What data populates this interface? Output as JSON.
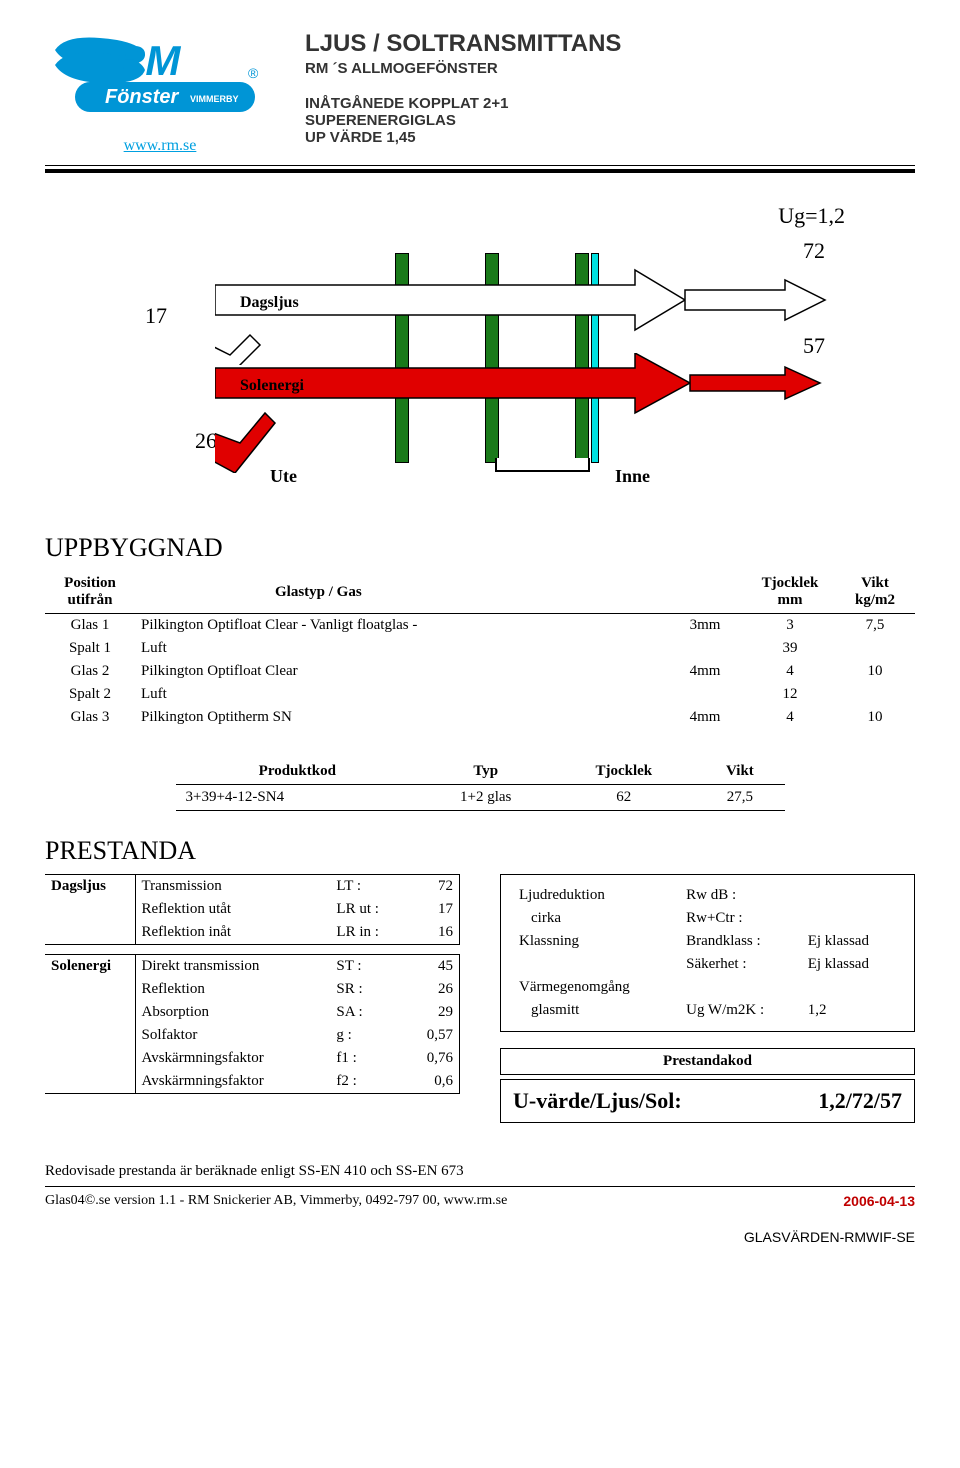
{
  "header": {
    "website": "www.rm.se",
    "title": "LJUS / SOLTRANSMITTANS",
    "subtitle1": "RM ´S ALLMOGEFÖNSTER",
    "subtitle2": "INÅTGÅNEDE KOPPLAT 2+1",
    "subtitle3": "SUPERENERGIGLAS",
    "subtitle4": "UP VÄRDE 1,45",
    "logo_colors": {
      "blue": "#0095d6",
      "dark_blue": "#003a6b"
    }
  },
  "diagram": {
    "ug_label": "Ug=1,2",
    "val_72": "72",
    "val_17": "17",
    "val_57": "57",
    "val_26": "26",
    "dagsljus_label": "Dagsljus",
    "solenergi_label": "Solenergi",
    "ute_label": "Ute",
    "inne_label": "Inne",
    "glass_positions": [
      350,
      440,
      530,
      546
    ],
    "glass_colors": [
      "#1a7a1a",
      "#1a7a1a",
      "#1a7a1a",
      "#00e0e0"
    ],
    "arrow_red": "#e00000",
    "arrow_white": "#ffffff"
  },
  "uppbyggnad": {
    "heading": "UPPBYGGNAD",
    "headers": {
      "position": "Position utifrån",
      "glastyp": "Glastyp / Gas",
      "tjocklek": "Tjocklek mm",
      "vikt": "Vikt kg/m2"
    },
    "rows": [
      {
        "pos": "Glas 1",
        "typ": "Pilkington Optifloat Clear    - Vanligt floatglas -",
        "dim": "3mm",
        "mm": "3",
        "kg": "7,5"
      },
      {
        "pos": "Spalt 1",
        "typ": "Luft",
        "dim": "",
        "mm": "39",
        "kg": ""
      },
      {
        "pos": "Glas 2",
        "typ": "Pilkington Optifloat Clear",
        "dim": "4mm",
        "mm": "4",
        "kg": "10"
      },
      {
        "pos": "Spalt 2",
        "typ": "Luft",
        "dim": "",
        "mm": "12",
        "kg": ""
      },
      {
        "pos": "Glas 3",
        "typ": "Pilkington Optitherm SN",
        "dim": "4mm",
        "mm": "4",
        "kg": "10"
      }
    ]
  },
  "produktkod": {
    "headers": {
      "kod": "Produktkod",
      "typ": "Typ",
      "tjocklek": "Tjocklek",
      "vikt": "Vikt"
    },
    "row": {
      "kod": "3+39+4-12-SN4",
      "typ": "1+2 glas",
      "tjocklek": "62",
      "vikt": "27,5"
    }
  },
  "prestanda": {
    "heading": "PRESTANDA",
    "dagsljus_label": "Dagsljus",
    "solenergi_label": "Solenergi",
    "dagsljus": [
      {
        "name": "Transmission",
        "code": "LT :",
        "val": "72"
      },
      {
        "name": "Reflektion utåt",
        "code": "LR ut :",
        "val": "17"
      },
      {
        "name": "Reflektion inåt",
        "code": "LR in :",
        "val": "16"
      }
    ],
    "solenergi": [
      {
        "name": "Direkt transmission",
        "code": "ST :",
        "val": "45"
      },
      {
        "name": "Reflektion",
        "code": "SR :",
        "val": "26"
      },
      {
        "name": "Absorption",
        "code": "SA :",
        "val": "29"
      },
      {
        "name": "Solfaktor",
        "code": "g :",
        "val": "0,57"
      },
      {
        "name": "Avskärmningsfaktor",
        "code": "f1 :",
        "val": "0,76"
      },
      {
        "name": "Avskärmningsfaktor",
        "code": "f2 :",
        "val": "0,6"
      }
    ],
    "info": {
      "ljud_label": "Ljudreduktion",
      "ljud_sub": "cirka",
      "rw": "Rw dB :",
      "rwctr": "Rw+Ctr :",
      "klassning": "Klassning",
      "brandklass": "Brandklass :",
      "brandval": "Ej klassad",
      "sakerhet": "Säkerhet :",
      "sakerhetval": "Ej klassad",
      "varme": "Värmegenomgång",
      "glasmitt": "glasmitt",
      "ug": "Ug W/m2K :",
      "ugval": "1,2"
    },
    "pk_label": "Prestandakod",
    "uvarde_label": "U-värde/Ljus/Sol:",
    "uvarde_val": "1,2/72/57"
  },
  "footer": {
    "note": "Redovisade prestanda är beräknade enligt SS-EN 410 och SS-EN 673",
    "version": "Glas04©.se version 1.1   -   RM Snickerier AB, Vimmerby, 0492-797 00, www.rm.se",
    "date": "2006-04-13",
    "code": "GLASVÄRDEN-RMWIF-SE"
  }
}
